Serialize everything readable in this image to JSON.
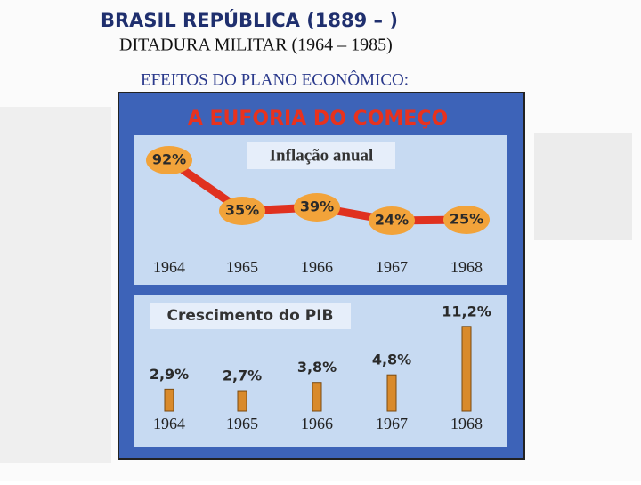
{
  "header": {
    "title": "BRASIL REPÚBLICA (1889 – )",
    "subtitle": "DITADURA MILITAR (1964 – 1985)",
    "section": "EFEITOS DO PLANO ECONÔMICO:",
    "banner": "A EUFORIA DO COMEÇO"
  },
  "chart_data": [
    {
      "type": "line",
      "title": "Inflação anual",
      "categories": [
        "1964",
        "1965",
        "1966",
        "1967",
        "1968"
      ],
      "values": [
        92,
        35,
        39,
        24,
        25
      ],
      "value_labels": [
        "92%",
        "35%",
        "39%",
        "24%",
        "25%"
      ],
      "color": "#e0311f"
    },
    {
      "type": "bar",
      "title": "Crescimento do PIB",
      "categories": [
        "1964",
        "1965",
        "1966",
        "1967",
        "1968"
      ],
      "values": [
        2.9,
        2.7,
        3.8,
        4.8,
        11.2
      ],
      "value_labels": [
        "2,9%",
        "2,7%",
        "3,8%",
        "4,8%",
        "11,2%"
      ],
      "color": "#d98a2b"
    }
  ]
}
